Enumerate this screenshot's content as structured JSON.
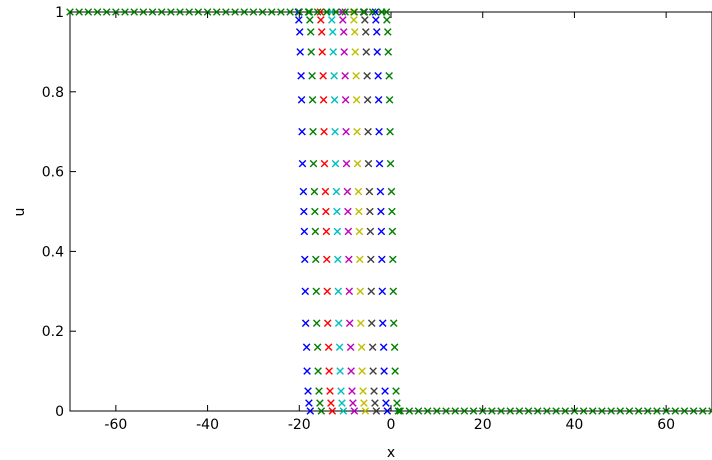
{
  "chart_data": {
    "type": "scatter",
    "title": "",
    "xlabel": "x",
    "ylabel": "u",
    "xlim": [
      -70,
      70
    ],
    "ylim": [
      0,
      1
    ],
    "xticks": [
      -60,
      -40,
      -20,
      0,
      20,
      40,
      60
    ],
    "yticks": [
      0,
      0.2,
      0.4,
      0.6,
      0.8,
      1
    ],
    "ytick_labels": [
      "0",
      "0.2",
      "0.4",
      "0.6",
      "0.8",
      "1"
    ],
    "grid": false,
    "legend": "none",
    "marker": "x",
    "series": [
      {
        "color": "#0000ff",
        "x": [
          -20.2,
          -20.1,
          -19.9,
          -19.8,
          -19.6,
          -19.5,
          -19.4,
          -19.3,
          -19.1,
          -19.0,
          -18.9,
          -18.8,
          -18.7,
          -18.6,
          -18.4,
          -18.3,
          -18.1,
          -17.9,
          -17.6
        ],
        "y": [
          1.0,
          0.98,
          0.95,
          0.9,
          0.84,
          0.78,
          0.7,
          0.62,
          0.55,
          0.5,
          0.45,
          0.38,
          0.3,
          0.22,
          0.16,
          0.1,
          0.05,
          0.02,
          0.0
        ]
      },
      {
        "color": "#008000",
        "x": [
          -17.8,
          -17.7,
          -17.5,
          -17.4,
          -17.2,
          -17.1,
          -17.0,
          -16.9,
          -16.7,
          -16.6,
          -16.5,
          -16.4,
          -16.3,
          -16.2,
          -16.0,
          -15.9,
          -15.7,
          -15.5,
          -15.2
        ],
        "y": [
          1.0,
          0.98,
          0.95,
          0.9,
          0.84,
          0.78,
          0.7,
          0.62,
          0.55,
          0.5,
          0.45,
          0.38,
          0.3,
          0.22,
          0.16,
          0.1,
          0.05,
          0.02,
          0.0
        ]
      },
      {
        "color": "#ff0000",
        "x": [
          -15.4,
          -15.3,
          -15.1,
          -15.0,
          -14.8,
          -14.7,
          -14.6,
          -14.5,
          -14.3,
          -14.2,
          -14.1,
          -14.0,
          -13.9,
          -13.8,
          -13.6,
          -13.5,
          -13.3,
          -13.1,
          -12.8
        ],
        "y": [
          1.0,
          0.98,
          0.95,
          0.9,
          0.84,
          0.78,
          0.7,
          0.62,
          0.55,
          0.5,
          0.45,
          0.38,
          0.3,
          0.22,
          0.16,
          0.1,
          0.05,
          0.02,
          0.0
        ]
      },
      {
        "color": "#00bfbf",
        "x": [
          -13.0,
          -12.9,
          -12.7,
          -12.6,
          -12.4,
          -12.3,
          -12.2,
          -12.1,
          -11.9,
          -11.8,
          -11.7,
          -11.6,
          -11.5,
          -11.4,
          -11.2,
          -11.1,
          -10.9,
          -10.7,
          -10.4
        ],
        "y": [
          1.0,
          0.98,
          0.95,
          0.9,
          0.84,
          0.78,
          0.7,
          0.62,
          0.55,
          0.5,
          0.45,
          0.38,
          0.3,
          0.22,
          0.16,
          0.1,
          0.05,
          0.02,
          0.0
        ]
      },
      {
        "color": "#bf00bf",
        "x": [
          -10.6,
          -10.5,
          -10.3,
          -10.2,
          -10.0,
          -9.9,
          -9.8,
          -9.7,
          -9.5,
          -9.4,
          -9.3,
          -9.2,
          -9.1,
          -9.0,
          -8.8,
          -8.7,
          -8.5,
          -8.3,
          -8.0
        ],
        "y": [
          1.0,
          0.98,
          0.95,
          0.9,
          0.84,
          0.78,
          0.7,
          0.62,
          0.55,
          0.5,
          0.45,
          0.38,
          0.3,
          0.22,
          0.16,
          0.1,
          0.05,
          0.02,
          0.0
        ]
      },
      {
        "color": "#bfbf00",
        "x": [
          -8.2,
          -8.1,
          -7.9,
          -7.8,
          -7.6,
          -7.5,
          -7.4,
          -7.3,
          -7.1,
          -7.0,
          -6.9,
          -6.8,
          -6.7,
          -6.6,
          -6.4,
          -6.3,
          -6.1,
          -5.9,
          -5.6
        ],
        "y": [
          1.0,
          0.98,
          0.95,
          0.9,
          0.84,
          0.78,
          0.7,
          0.62,
          0.55,
          0.5,
          0.45,
          0.38,
          0.3,
          0.22,
          0.16,
          0.1,
          0.05,
          0.02,
          0.0
        ]
      },
      {
        "color": "#404040",
        "x": [
          -5.8,
          -5.7,
          -5.5,
          -5.4,
          -5.2,
          -5.1,
          -5.0,
          -4.9,
          -4.7,
          -4.6,
          -4.5,
          -4.4,
          -4.3,
          -4.2,
          -4.0,
          -3.9,
          -3.7,
          -3.5,
          -3.2
        ],
        "y": [
          1.0,
          0.98,
          0.95,
          0.9,
          0.84,
          0.78,
          0.7,
          0.62,
          0.55,
          0.5,
          0.45,
          0.38,
          0.3,
          0.22,
          0.16,
          0.1,
          0.05,
          0.02,
          0.0
        ]
      },
      {
        "color": "#0000ff",
        "x": [
          -3.4,
          -3.3,
          -3.1,
          -3.0,
          -2.8,
          -2.7,
          -2.6,
          -2.5,
          -2.3,
          -2.2,
          -2.1,
          -2.0,
          -1.9,
          -1.8,
          -1.6,
          -1.5,
          -1.3,
          -1.1,
          -0.8
        ],
        "y": [
          1.0,
          0.98,
          0.95,
          0.9,
          0.84,
          0.78,
          0.7,
          0.62,
          0.55,
          0.5,
          0.45,
          0.38,
          0.3,
          0.22,
          0.16,
          0.1,
          0.05,
          0.02,
          0.0
        ]
      },
      {
        "color": "#008000",
        "x": [
          -70,
          -68,
          -66,
          -64,
          -62,
          -60,
          -58,
          -56,
          -54,
          -52,
          -50,
          -48,
          -46,
          -44,
          -42,
          -40,
          -38,
          -36,
          -34,
          -32,
          -30,
          -28,
          -26,
          -24,
          -22,
          -20,
          -18,
          -16,
          -14,
          -12,
          -10,
          -8,
          -6,
          -4,
          -2,
          -1.0,
          -0.9,
          -0.7,
          -0.6,
          -0.4,
          -0.3,
          -0.2,
          -0.1,
          0.1,
          0.2,
          0.3,
          0.4,
          0.5,
          0.6,
          0.8,
          0.9,
          1.1,
          1.3,
          1.6,
          2,
          4,
          6,
          8,
          10,
          12,
          14,
          16,
          18,
          20,
          22,
          24,
          26,
          28,
          30,
          32,
          34,
          36,
          38,
          40,
          42,
          44,
          46,
          48,
          50,
          52,
          54,
          56,
          58,
          60,
          62,
          64,
          66,
          68,
          70
        ],
        "y": [
          1,
          1,
          1,
          1,
          1,
          1,
          1,
          1,
          1,
          1,
          1,
          1,
          1,
          1,
          1,
          1,
          1,
          1,
          1,
          1,
          1,
          1,
          1,
          1,
          1,
          1,
          1,
          1,
          1,
          1,
          1,
          1,
          1,
          1,
          1,
          1.0,
          0.98,
          0.95,
          0.9,
          0.84,
          0.78,
          0.7,
          0.62,
          0.55,
          0.5,
          0.45,
          0.38,
          0.3,
          0.22,
          0.16,
          0.1,
          0.05,
          0.02,
          0.0,
          0,
          0,
          0,
          0,
          0,
          0,
          0,
          0,
          0,
          0,
          0,
          0,
          0,
          0,
          0,
          0,
          0,
          0,
          0,
          0,
          0,
          0,
          0,
          0,
          0,
          0,
          0,
          0,
          0,
          0,
          0,
          0,
          0,
          0,
          0
        ]
      }
    ]
  }
}
